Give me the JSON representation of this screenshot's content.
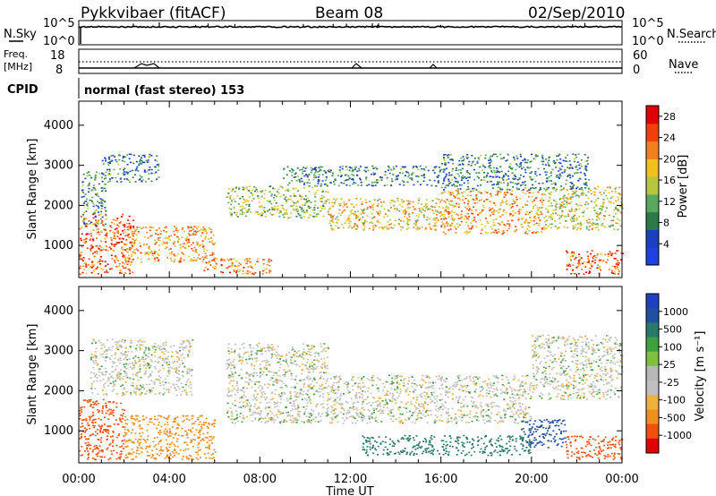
{
  "header": {
    "title": "Pykkvibaer (fitACF)",
    "beam": "Beam 08",
    "date": "02/Sep/2010"
  },
  "noise_panel": {
    "left_label": "N.Sky",
    "right_label": "N.Search",
    "left_ticks": [
      "10^5",
      "10^0"
    ],
    "right_ticks": [
      "10^5",
      "10^0"
    ]
  },
  "freq_panel": {
    "left_label_1": "Freq.",
    "left_label_2": "[MHz]",
    "right_label": "Nave",
    "left_ticks": [
      "18",
      "8"
    ],
    "right_ticks": [
      "60",
      "0"
    ]
  },
  "cpid": {
    "label": "CPID",
    "text": "normal (fast stereo) 153"
  },
  "colors": {
    "power_scale": [
      "#2040e0",
      "#1a3fbf",
      "#2a7a4a",
      "#5aa860",
      "#b6c640",
      "#f0c020",
      "#f08020",
      "#f04010",
      "#e00000"
    ],
    "velocity_scale": [
      "#e00000",
      "#f05010",
      "#f09020",
      "#f0b040",
      "#c0c0c0",
      "#b8b8b8",
      "#80c040",
      "#40a040",
      "#2a7a6a",
      "#2050a0",
      "#2040c0"
    ],
    "ground_scatter": "#c0c0c0"
  },
  "chart_data": [
    {
      "type": "heatmap",
      "panel": "power",
      "xlabel": "Time UT",
      "ylabel": "Slant Range [km]",
      "x_ticks": [
        "00:00",
        "04:00",
        "08:00",
        "12:00",
        "16:00",
        "20:00",
        "00:00"
      ],
      "y_ticks": [
        1000,
        2000,
        3000,
        4000
      ],
      "ylim": [
        200,
        4600
      ],
      "colorbar": {
        "label": "Power [dB]",
        "ticks": [
          4,
          8,
          12,
          16,
          20,
          24,
          28
        ],
        "range": [
          0,
          30
        ]
      },
      "regions": [
        {
          "t": [
            0.0,
            2.4
          ],
          "r": [
            300,
            1800
          ],
          "value": 24
        },
        {
          "t": [
            0.1,
            1.2
          ],
          "r": [
            1500,
            2900
          ],
          "value": 10
        },
        {
          "t": [
            1.0,
            3.5
          ],
          "r": [
            2600,
            3300
          ],
          "value": 8
        },
        {
          "t": [
            2.0,
            6.0
          ],
          "r": [
            600,
            1500
          ],
          "value": 20
        },
        {
          "t": [
            5.5,
            8.5
          ],
          "r": [
            300,
            700
          ],
          "value": 22
        },
        {
          "t": [
            6.5,
            11.0
          ],
          "r": [
            1700,
            2500
          ],
          "value": 14
        },
        {
          "t": [
            11.0,
            16.0
          ],
          "r": [
            1400,
            2200
          ],
          "value": 18
        },
        {
          "t": [
            16.0,
            20.5
          ],
          "r": [
            1300,
            2400
          ],
          "value": 20
        },
        {
          "t": [
            20.5,
            24.0
          ],
          "r": [
            1400,
            2500
          ],
          "value": 16
        },
        {
          "t": [
            9.0,
            16.0
          ],
          "r": [
            2500,
            3000
          ],
          "value": 8
        },
        {
          "t": [
            16.0,
            22.5
          ],
          "r": [
            2400,
            3300
          ],
          "value": 8
        },
        {
          "t": [
            21.5,
            24.0
          ],
          "r": [
            300,
            900
          ],
          "value": 24
        }
      ]
    },
    {
      "type": "heatmap",
      "panel": "velocity",
      "xlabel": "Time UT",
      "ylabel": "Slant Range [km]",
      "x_ticks": [
        "00:00",
        "04:00",
        "08:00",
        "12:00",
        "16:00",
        "20:00",
        "00:00"
      ],
      "y_ticks": [
        1000,
        2000,
        3000,
        4000
      ],
      "ylim": [
        200,
        4600
      ],
      "colorbar": {
        "label": "Velocity [m s⁻¹]",
        "ticks": [
          1000,
          500,
          100,
          25,
          -25,
          -100,
          -500,
          -1000
        ]
      },
      "regions": [
        {
          "t": [
            0.0,
            2.0
          ],
          "r": [
            300,
            1800
          ],
          "value": -400
        },
        {
          "t": [
            0.5,
            5.0
          ],
          "r": [
            1900,
            3300
          ],
          "value": 0
        },
        {
          "t": [
            2.0,
            6.0
          ],
          "r": [
            300,
            1400
          ],
          "value": -200
        },
        {
          "t": [
            6.5,
            11.0
          ],
          "r": [
            1200,
            3200
          ],
          "value": 0
        },
        {
          "t": [
            11.0,
            20.0
          ],
          "r": [
            1200,
            2400
          ],
          "value": 0
        },
        {
          "t": [
            12.5,
            20.0
          ],
          "r": [
            400,
            900
          ],
          "value": 200
        },
        {
          "t": [
            19.5,
            21.5
          ],
          "r": [
            600,
            1300
          ],
          "value": 700
        },
        {
          "t": [
            20.0,
            24.0
          ],
          "r": [
            1800,
            3400
          ],
          "value": 0
        },
        {
          "t": [
            21.5,
            24.0
          ],
          "r": [
            300,
            900
          ],
          "value": -500
        }
      ]
    }
  ]
}
